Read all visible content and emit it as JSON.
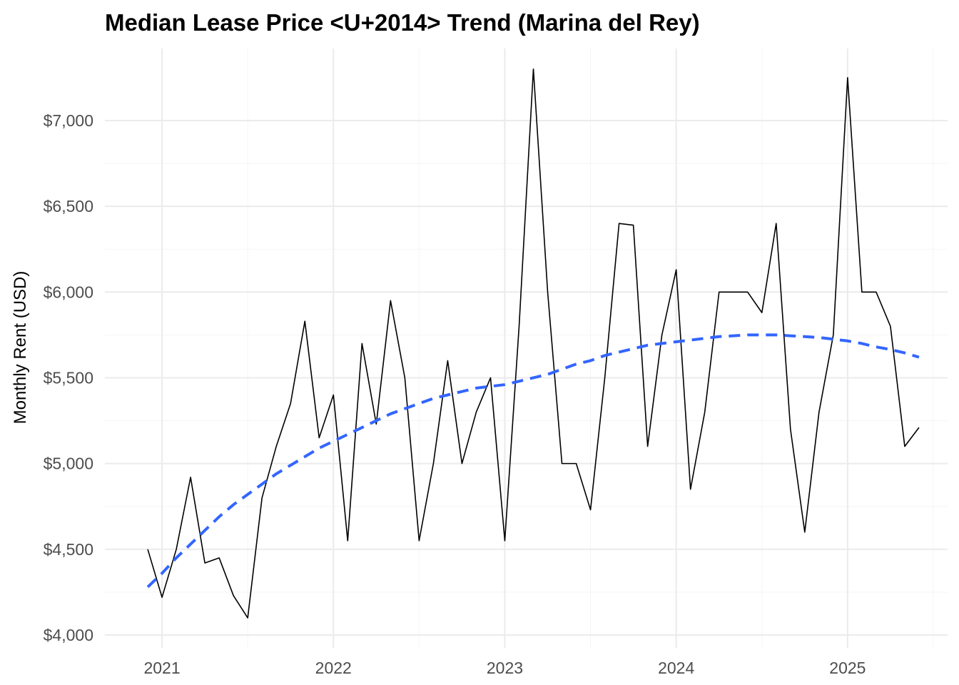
{
  "chart_data": {
    "type": "line",
    "title": "Median Lease Price <U+2014> Trend (Marina del Rey)",
    "xlabel": "",
    "ylabel": "Monthly Rent (USD)",
    "x_ticks": [
      "2021",
      "2022",
      "2023",
      "2024",
      "2025"
    ],
    "y_ticks": [
      "$4,000",
      "$4,500",
      "$5,000",
      "$5,500",
      "$6,000",
      "$6,500",
      "$7,000"
    ],
    "ylim": [
      3925,
      7420
    ],
    "xlim": [
      "2020-09-01",
      "2025-08-01"
    ],
    "grid": true,
    "x": [
      "2020-12",
      "2021-01",
      "2021-02",
      "2021-03",
      "2021-04",
      "2021-05",
      "2021-06",
      "2021-07",
      "2021-08",
      "2021-09",
      "2021-10",
      "2021-11",
      "2021-12",
      "2022-01",
      "2022-02",
      "2022-03",
      "2022-04",
      "2022-05",
      "2022-06",
      "2022-07",
      "2022-08",
      "2022-09",
      "2022-10",
      "2022-11",
      "2022-12",
      "2023-01",
      "2023-02",
      "2023-03",
      "2023-04",
      "2023-05",
      "2023-06",
      "2023-07",
      "2023-08",
      "2023-09",
      "2023-10",
      "2023-11",
      "2023-12",
      "2024-01",
      "2024-02",
      "2024-03",
      "2024-04",
      "2024-05",
      "2024-06",
      "2024-07",
      "2024-08",
      "2024-09",
      "2024-10",
      "2024-11",
      "2024-12",
      "2025-01",
      "2025-02",
      "2025-03",
      "2025-04",
      "2025-05",
      "2025-06"
    ],
    "series": [
      {
        "values": [
          4500,
          4220,
          4500,
          4920,
          4420,
          4450,
          4230,
          4100,
          4800,
          5100,
          5350,
          5830,
          5150,
          5400,
          4550,
          5700,
          5230,
          5950,
          5500,
          4550,
          5000,
          5600,
          5000,
          5300,
          5500,
          4550,
          5800,
          7300,
          6000,
          5000,
          5000,
          4730,
          5500,
          6400,
          6390,
          5100,
          5750,
          6130,
          4850,
          5300,
          6000,
          6000,
          6000,
          5880,
          6400,
          5200,
          4600,
          5300,
          5750,
          7250,
          6000,
          6000,
          5800,
          5100,
          5210
        ],
        "color": "#000000",
        "style": "solid"
      },
      {
        "values": [
          4280,
          4360,
          4450,
          4530,
          4610,
          4690,
          4760,
          4820,
          4880,
          4940,
          4990,
          5040,
          5090,
          5130,
          5170,
          5210,
          5250,
          5290,
          5320,
          5350,
          5380,
          5400,
          5420,
          5440,
          5450,
          5460,
          5480,
          5500,
          5520,
          5550,
          5580,
          5600,
          5630,
          5650,
          5670,
          5690,
          5700,
          5710,
          5720,
          5730,
          5740,
          5745,
          5750,
          5750,
          5750,
          5745,
          5740,
          5735,
          5725,
          5715,
          5700,
          5680,
          5665,
          5645,
          5620
        ],
        "color": "#3366ff",
        "style": "dashed"
      }
    ]
  }
}
